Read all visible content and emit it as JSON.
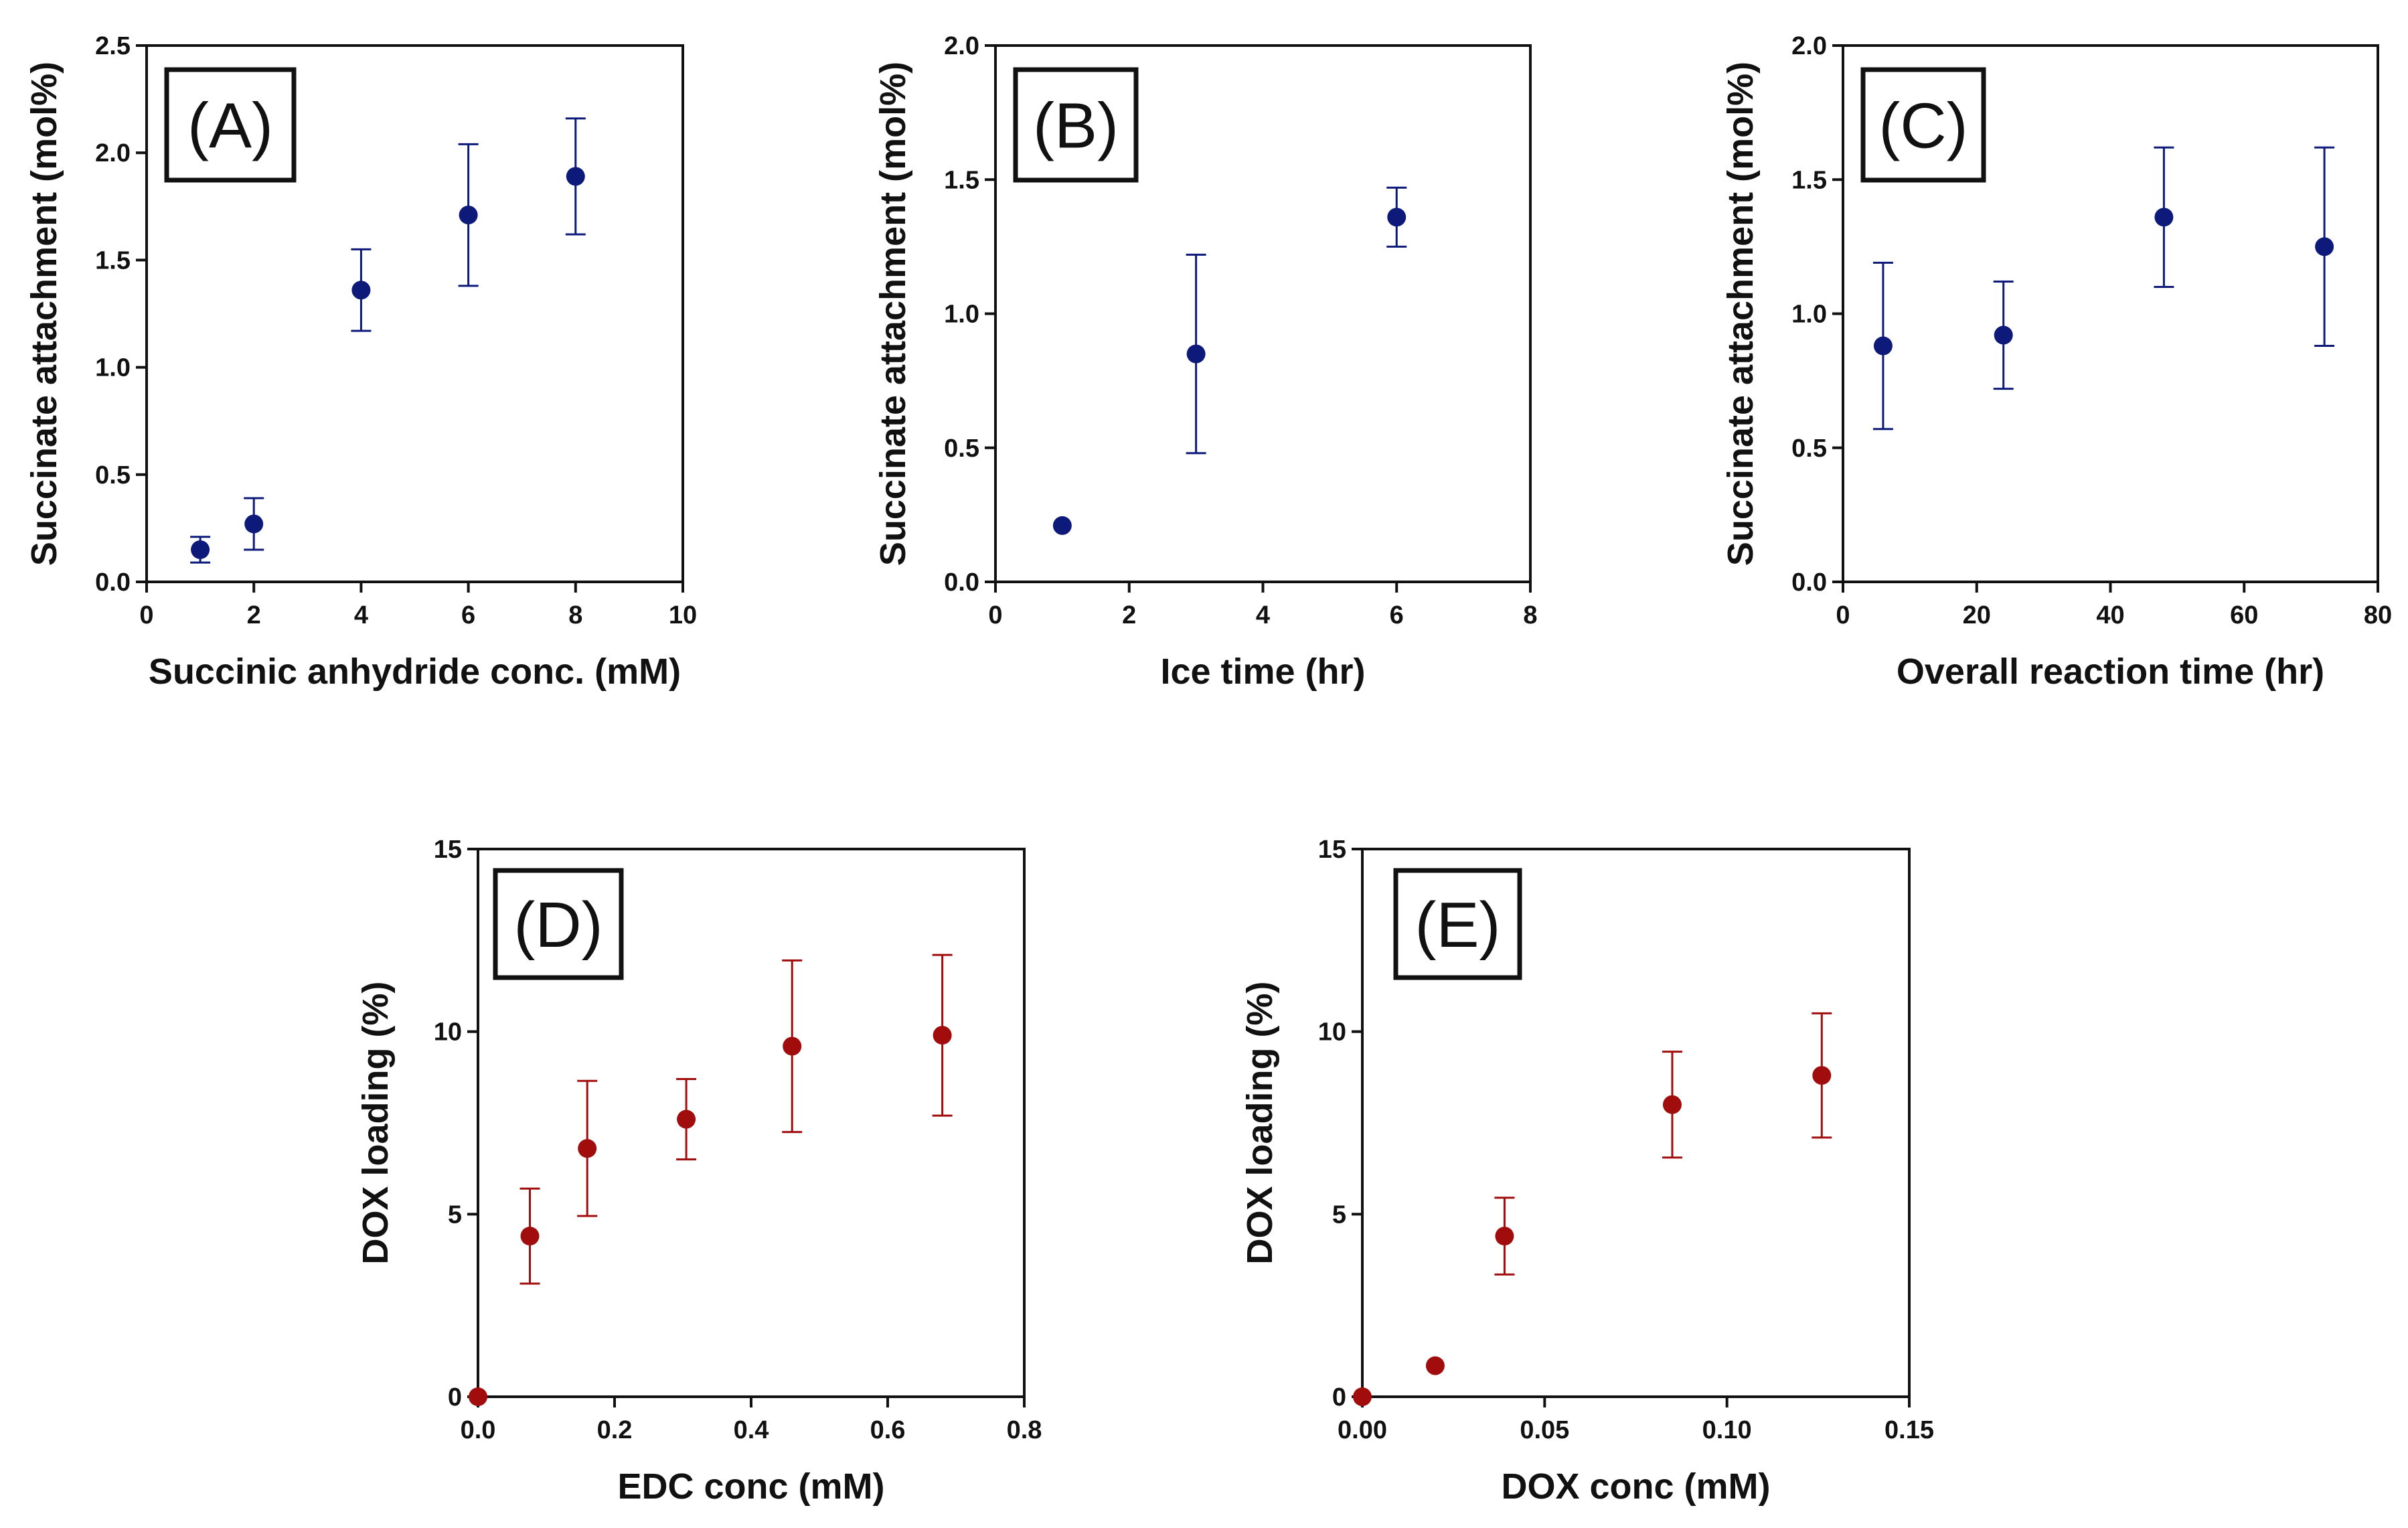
{
  "colors": {
    "blue": "#0d1a7a",
    "red": "#a10d0d",
    "axis": "#111111"
  },
  "chart_data": [
    {
      "type": "scatter",
      "panel": "(A)",
      "xlabel": "Succinic anhydride conc. (mM)",
      "ylabel": "Succinate attachment (mol%)",
      "xlim": [
        0,
        10
      ],
      "ylim": [
        0,
        2.5
      ],
      "xticks": [
        0,
        2,
        4,
        6,
        8,
        10
      ],
      "yticks": [
        0,
        0.5,
        1.0,
        1.5,
        2.0,
        2.5
      ],
      "x_tick_labels": [
        "0",
        "2",
        "4",
        "6",
        "8",
        "10"
      ],
      "y_tick_labels": [
        "0.0",
        "0.5",
        "1.0",
        "1.5",
        "2.0",
        "2.5"
      ],
      "color": "blue",
      "points": [
        {
          "x": 1,
          "y": 0.15,
          "err": 0.06
        },
        {
          "x": 2,
          "y": 0.27,
          "err": 0.12
        },
        {
          "x": 4,
          "y": 1.36,
          "err": 0.19
        },
        {
          "x": 6,
          "y": 1.71,
          "err": 0.33
        },
        {
          "x": 8,
          "y": 1.89,
          "err": 0.27
        }
      ]
    },
    {
      "type": "scatter",
      "panel": "(B)",
      "xlabel": "Ice time (hr)",
      "ylabel": "Succinate attachment (mol%)",
      "xlim": [
        0,
        8
      ],
      "ylim": [
        0,
        2.0
      ],
      "xticks": [
        0,
        2,
        4,
        6,
        8
      ],
      "yticks": [
        0,
        0.5,
        1.0,
        1.5,
        2.0
      ],
      "x_tick_labels": [
        "0",
        "2",
        "4",
        "6",
        "8"
      ],
      "y_tick_labels": [
        "0.0",
        "0.5",
        "1.0",
        "1.5",
        "2.0"
      ],
      "color": "blue",
      "points": [
        {
          "x": 1,
          "y": 0.21,
          "err": 0
        },
        {
          "x": 3,
          "y": 0.85,
          "err": 0.37
        },
        {
          "x": 6,
          "y": 1.36,
          "err": 0.11
        }
      ]
    },
    {
      "type": "scatter",
      "panel": "(C)",
      "xlabel": "Overall reaction time (hr)",
      "ylabel": "Succinate attachment (mol%)",
      "xlim": [
        0,
        80
      ],
      "ylim": [
        0,
        2.0
      ],
      "xticks": [
        0,
        20,
        40,
        60,
        80
      ],
      "yticks": [
        0,
        0.5,
        1.0,
        1.5,
        2.0
      ],
      "x_tick_labels": [
        "0",
        "20",
        "40",
        "60",
        "80"
      ],
      "y_tick_labels": [
        "0.0",
        "0.5",
        "1.0",
        "1.5",
        "2.0"
      ],
      "color": "blue",
      "points": [
        {
          "x": 6,
          "y": 0.88,
          "err": 0.31
        },
        {
          "x": 24,
          "y": 0.92,
          "err": 0.2
        },
        {
          "x": 48,
          "y": 1.36,
          "err": 0.26
        },
        {
          "x": 72,
          "y": 1.25,
          "err": 0.37
        }
      ]
    },
    {
      "type": "scatter",
      "panel": "(D)",
      "xlabel": "EDC conc (mM)",
      "ylabel": "DOX loading (%)",
      "xlim": [
        0,
        0.8
      ],
      "ylim": [
        0,
        15
      ],
      "xticks": [
        0,
        0.2,
        0.4,
        0.6,
        0.8
      ],
      "yticks": [
        0,
        5,
        10,
        15
      ],
      "x_tick_labels": [
        "0.0",
        "0.2",
        "0.4",
        "0.6",
        "0.8"
      ],
      "y_tick_labels": [
        "0",
        "5",
        "10",
        "15"
      ],
      "color": "red",
      "points": [
        {
          "x": 0.0,
          "y": 0.0,
          "err": 0
        },
        {
          "x": 0.076,
          "y": 4.4,
          "err": 1.3
        },
        {
          "x": 0.16,
          "y": 6.8,
          "err": 1.85
        },
        {
          "x": 0.305,
          "y": 7.6,
          "err": 1.1
        },
        {
          "x": 0.46,
          "y": 9.6,
          "err": 2.35
        },
        {
          "x": 0.68,
          "y": 9.9,
          "err": 2.2
        }
      ]
    },
    {
      "type": "scatter",
      "panel": "(E)",
      "xlabel": "DOX conc (mM)",
      "ylabel": "DOX loading (%)",
      "xlim": [
        0,
        0.15
      ],
      "ylim": [
        0,
        15
      ],
      "xticks": [
        0,
        0.05,
        0.1,
        0.15
      ],
      "yticks": [
        0,
        5,
        10,
        15
      ],
      "x_tick_labels": [
        "0.00",
        "0.05",
        "0.10",
        "0.15"
      ],
      "y_tick_labels": [
        "0",
        "5",
        "10",
        "15"
      ],
      "color": "red",
      "points": [
        {
          "x": 0.0,
          "y": 0.0,
          "err": 0
        },
        {
          "x": 0.02,
          "y": 0.85,
          "err": 0
        },
        {
          "x": 0.039,
          "y": 4.4,
          "err": 1.05
        },
        {
          "x": 0.085,
          "y": 8.0,
          "err": 1.45
        },
        {
          "x": 0.126,
          "y": 8.8,
          "err": 1.7
        }
      ]
    }
  ]
}
